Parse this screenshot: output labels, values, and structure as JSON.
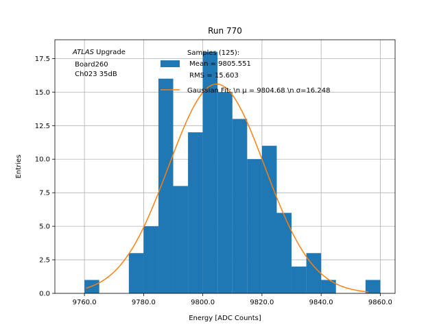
{
  "chart_data": {
    "type": "bar",
    "title": "Run 770",
    "xlabel": "Energy [ADC Counts]",
    "ylabel": "Entries",
    "xlim": [
      9750.0,
      9865.0
    ],
    "ylim": [
      0,
      18.9
    ],
    "x_ticks": [
      9760.0,
      9780.0,
      9800.0,
      9820.0,
      9840.0,
      9860.0
    ],
    "x_tick_labels": [
      "9760.0",
      "9780.0",
      "9800.0",
      "9820.0",
      "9840.0",
      "9860.0"
    ],
    "y_ticks": [
      0,
      2.5,
      5,
      7.5,
      10,
      12.5,
      15,
      17.5
    ],
    "y_tick_labels": [
      "0.0",
      "2.5",
      "5.0",
      "7.5",
      "10.0",
      "12.5",
      "15.0",
      "17.5"
    ],
    "grid": true,
    "bin_width": 5,
    "bins": [
      {
        "x0": 9760,
        "count": 1
      },
      {
        "x0": 9765,
        "count": 0
      },
      {
        "x0": 9770,
        "count": 0
      },
      {
        "x0": 9775,
        "count": 3
      },
      {
        "x0": 9780,
        "count": 5
      },
      {
        "x0": 9785,
        "count": 16
      },
      {
        "x0": 9790,
        "count": 8
      },
      {
        "x0": 9795,
        "count": 12
      },
      {
        "x0": 9800,
        "count": 18
      },
      {
        "x0": 9805,
        "count": 15
      },
      {
        "x0": 9810,
        "count": 13
      },
      {
        "x0": 9815,
        "count": 10
      },
      {
        "x0": 9820,
        "count": 11
      },
      {
        "x0": 9825,
        "count": 6
      },
      {
        "x0": 9830,
        "count": 2
      },
      {
        "x0": 9835,
        "count": 3
      },
      {
        "x0": 9840,
        "count": 1
      },
      {
        "x0": 9845,
        "count": 0
      },
      {
        "x0": 9850,
        "count": 0
      },
      {
        "x0": 9855,
        "count": 1
      }
    ],
    "fit": {
      "type": "gaussian",
      "mu": 9804.68,
      "sigma": 16.248,
      "amplitude": 15.6,
      "x_range": [
        9760.5,
        9856.0
      ]
    },
    "legend": {
      "position": "top-center",
      "samples_lines": [
        "Samples (125):",
        " Mean = 9805.551",
        " RMS = 15.603"
      ],
      "fit_label": "Gaussian Fit: \\n μ = 9804.68 \\n σ=16.248"
    },
    "annotation": {
      "atlas": "ATLAS",
      "upgrade": " Upgrade",
      "lines": [
        " Board260",
        " Ch023 35dB"
      ]
    },
    "colors": {
      "bar": "#1f77b4",
      "fit": "#ff7f0e"
    }
  }
}
